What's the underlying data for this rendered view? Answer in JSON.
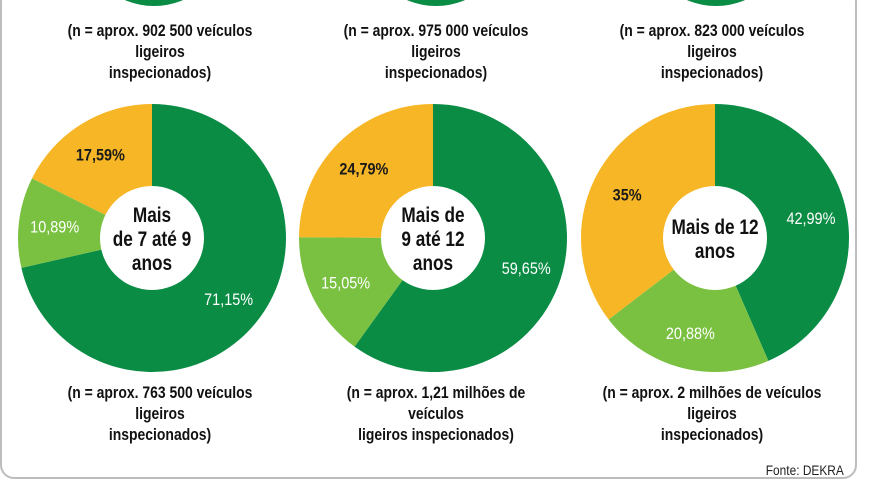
{
  "colors": {
    "dark_green": "#0a8c45",
    "light_green": "#7ac142",
    "yellow": "#f7b625"
  },
  "source": "Fonte: DEKRA",
  "top_captions": [
    {
      "line1": "(n = aprox. 902 500 veículos ligeiros",
      "line2": "inspecionados)"
    },
    {
      "line1": "(n = aprox. 975 000 veículos ligeiros",
      "line2": "inspecionados)"
    },
    {
      "line1": "(n = aprox. 823 000 veículos ligeiros",
      "line2": "inspecionados)"
    }
  ],
  "chart_data": [
    {
      "type": "pie",
      "center_label": [
        "Mais",
        "de 7 até 9",
        "anos"
      ],
      "slices": [
        {
          "label": "71,15%",
          "value": 71.15,
          "color": "#0a8c45"
        },
        {
          "label": "10,89%",
          "value": 10.89,
          "color": "#7ac142"
        },
        {
          "label": "17,59%",
          "value": 17.59,
          "color": "#f7b625"
        }
      ],
      "caption": [
        "(n = aprox. 763 500 veículos ligeiros",
        "inspecionados)"
      ]
    },
    {
      "type": "pie",
      "center_label": [
        "Mais de",
        "9 até 12",
        "anos"
      ],
      "slices": [
        {
          "label": "59,65%",
          "value": 59.65,
          "color": "#0a8c45"
        },
        {
          "label": "15,05%",
          "value": 15.05,
          "color": "#7ac142"
        },
        {
          "label": "24,79%",
          "value": 24.79,
          "color": "#f7b625"
        }
      ],
      "caption": [
        "(n = aprox. 1,21 milhões de veículos",
        "ligeiros inspecionados)"
      ]
    },
    {
      "type": "pie",
      "center_label": [
        "Mais de 12",
        "anos"
      ],
      "slices": [
        {
          "label": "42,99%",
          "value": 42.99,
          "color": "#0a8c45"
        },
        {
          "label": "20,88%",
          "value": 20.88,
          "color": "#7ac142"
        },
        {
          "label": "35%",
          "value": 35,
          "color": "#f7b625"
        }
      ],
      "caption": [
        "(n = aprox. 2 milhões de veículos ligeiros",
        "inspecionados)"
      ]
    }
  ]
}
